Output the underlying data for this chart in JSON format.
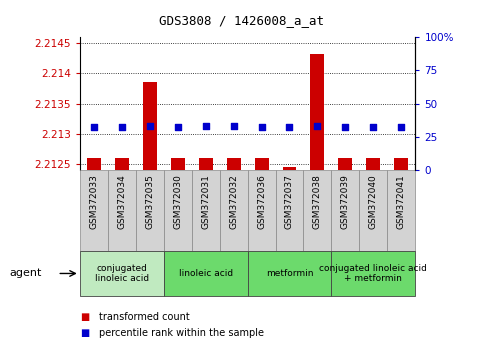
{
  "title": "GDS3808 / 1426008_a_at",
  "samples": [
    "GSM372033",
    "GSM372034",
    "GSM372035",
    "GSM372030",
    "GSM372031",
    "GSM372032",
    "GSM372036",
    "GSM372037",
    "GSM372038",
    "GSM372039",
    "GSM372040",
    "GSM372041"
  ],
  "red_values": [
    2.2126,
    2.2126,
    2.21385,
    2.2126,
    2.2126,
    2.2126,
    2.2126,
    2.21245,
    2.21432,
    2.2126,
    2.2126,
    2.2126
  ],
  "blue_values": [
    32,
    32,
    33,
    32,
    33,
    33,
    32,
    32,
    33,
    32,
    32,
    32
  ],
  "ylim_left": [
    2.2124,
    2.2146
  ],
  "ylim_right": [
    0,
    100
  ],
  "yticks_left": [
    2.2125,
    2.213,
    2.2135,
    2.214,
    2.2145
  ],
  "yticks_right": [
    0,
    25,
    50,
    75,
    100
  ],
  "ytick_labels_left": [
    "2.2125",
    "2.213",
    "2.2135",
    "2.214",
    "2.2145"
  ],
  "ytick_labels_right": [
    "0",
    "25",
    "50",
    "75",
    "100%"
  ],
  "groups": [
    {
      "label": "conjugated\nlinoleic acid",
      "start": 0,
      "end": 3,
      "color": "#c0eac0"
    },
    {
      "label": "linoleic acid",
      "start": 3,
      "end": 6,
      "color": "#6cda6c"
    },
    {
      "label": "metformin",
      "start": 6,
      "end": 9,
      "color": "#6cda6c"
    },
    {
      "label": "conjugated linoleic acid\n+ metformin",
      "start": 9,
      "end": 12,
      "color": "#6cda6c"
    }
  ],
  "legend_red": "transformed count",
  "legend_blue": "percentile rank within the sample",
  "agent_label": "agent",
  "bar_color": "#cc0000",
  "dot_color": "#0000cc",
  "tick_color_left": "#cc0000",
  "tick_color_right": "#0000cc",
  "bg_color": "#ffffff",
  "sample_box_color": "#d3d3d3",
  "sample_box_edge": "#888888"
}
